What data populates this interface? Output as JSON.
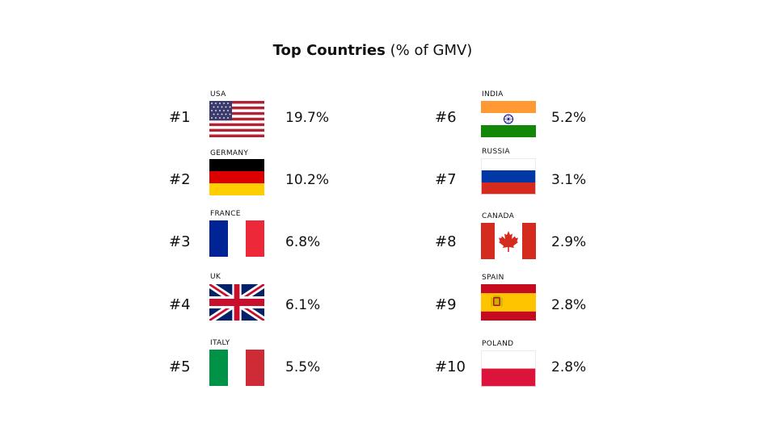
{
  "title": {
    "bold": "Top Countries",
    "light": "(% of GMV)"
  },
  "countries": [
    {
      "rank": "#1",
      "name": "USA",
      "percent": "19.7%",
      "flag_icon": "usa-flag-icon"
    },
    {
      "rank": "#2",
      "name": "GERMANY",
      "percent": "10.2%",
      "flag_icon": "germany-flag-icon"
    },
    {
      "rank": "#3",
      "name": "FRANCE",
      "percent": "6.8%",
      "flag_icon": "france-flag-icon"
    },
    {
      "rank": "#4",
      "name": "UK",
      "percent": "6.1%",
      "flag_icon": "uk-flag-icon"
    },
    {
      "rank": "#5",
      "name": "ITALY",
      "percent": "5.5%",
      "flag_icon": "italy-flag-icon"
    },
    {
      "rank": "#6",
      "name": "INDIA",
      "percent": "5.2%",
      "flag_icon": "india-flag-icon"
    },
    {
      "rank": "#7",
      "name": "RUSSIA",
      "percent": "3.1%",
      "flag_icon": "russia-flag-icon"
    },
    {
      "rank": "#8",
      "name": "CANADA",
      "percent": "2.9%",
      "flag_icon": "canada-flag-icon"
    },
    {
      "rank": "#9",
      "name": "SPAIN",
      "percent": "2.8%",
      "flag_icon": "spain-flag-icon"
    },
    {
      "rank": "#10",
      "name": "POLAND",
      "percent": "2.8%",
      "flag_icon": "poland-flag-icon"
    }
  ]
}
